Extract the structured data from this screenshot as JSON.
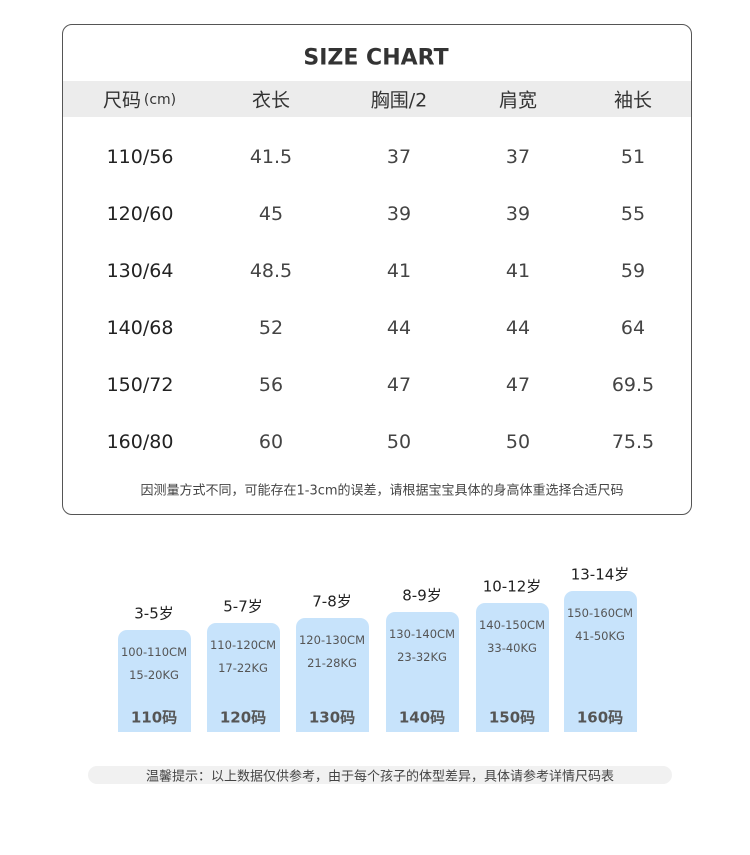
{
  "table": {
    "title": "SIZE CHART",
    "header": [
      "尺码",
      "(cm)",
      "衣长",
      "胸围/2",
      "肩宽",
      "袖长"
    ],
    "rows": [
      [
        "110/56",
        "41.5",
        "37",
        "37",
        "51"
      ],
      [
        "120/60",
        "45",
        "39",
        "39",
        "55"
      ],
      [
        "130/64",
        "48.5",
        "41",
        "41",
        "59"
      ],
      [
        "140/68",
        "52",
        "44",
        "44",
        "64"
      ],
      [
        "150/72",
        "56",
        "47",
        "47",
        "69.5"
      ],
      [
        "160/80",
        "60",
        "50",
        "50",
        "75.5"
      ]
    ],
    "note": "因测量方式不同，可能存在1-3cm的误差，请根据宝宝具体的身高体重选择合适尺码"
  },
  "sizes": [
    {
      "age": "3-5岁",
      "height": "100-110CM",
      "weight": "15-20KG",
      "size": "110码"
    },
    {
      "age": "5-7岁",
      "height": "110-120CM",
      "weight": "17-22KG",
      "size": "120码"
    },
    {
      "age": "7-8岁",
      "height": "120-130CM",
      "weight": "21-28KG",
      "size": "130码"
    },
    {
      "age": "8-9岁",
      "height": "130-140CM",
      "weight": "23-32KG",
      "size": "140码"
    },
    {
      "age": "10-12岁",
      "height": "140-150CM",
      "weight": "33-40KG",
      "size": "150码"
    },
    {
      "age": "13-14岁",
      "height": "150-160CM",
      "weight": "41-50KG",
      "size": "160码"
    }
  ],
  "tip": "温馨提示：以上数据仅供参考，由于每个孩子的体型差异，具体请参考详情尺码表"
}
